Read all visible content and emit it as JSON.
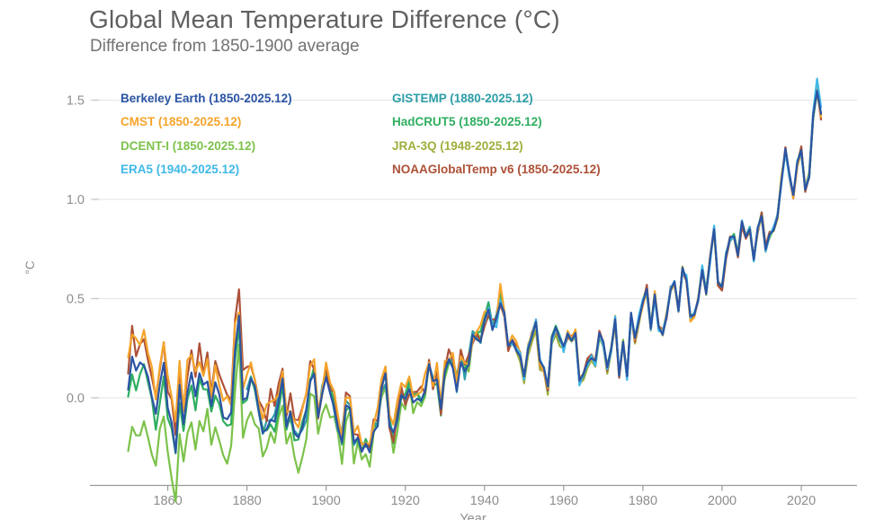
{
  "title": "Global Mean Temperature Difference (°C)",
  "subtitle": "Difference from 1850-1900 average",
  "colors": {
    "title_text": "#5f5f5f",
    "subtitle_text": "#737373",
    "axis_text": "#8e8e8e",
    "gridline": "#e9e9e9",
    "axis_line": "#9a9a9a",
    "background": "#ffffff"
  },
  "chart_data": {
    "type": "line",
    "title": "Global Mean Temperature Difference (°C)",
    "subtitle": "Difference from 1850-1900 average",
    "xlabel": "Year",
    "ylabel": "°C",
    "xlim": [
      1843,
      2034
    ],
    "ylim": [
      -0.45,
      1.65
    ],
    "grid": "horizontal",
    "legend_position": "top-left-two-columns",
    "x_start_year": 1850,
    "base_anomaly_by_year": [
      0.05,
      0.2,
      0.12,
      0.15,
      0.18,
      0.1,
      0.02,
      -0.1,
      0.05,
      0.15,
      -0.05,
      -0.15,
      -0.25,
      0.05,
      -0.15,
      0.05,
      0.1,
      0.0,
      0.12,
      0.05,
      0.08,
      -0.05,
      0.05,
      0.02,
      -0.08,
      -0.12,
      -0.1,
      0.25,
      0.4,
      0.0,
      0.02,
      0.1,
      0.05,
      -0.05,
      -0.15,
      -0.15,
      -0.08,
      -0.12,
      -0.02,
      0.1,
      -0.15,
      -0.08,
      -0.18,
      -0.2,
      -0.15,
      -0.08,
      0.1,
      0.12,
      -0.1,
      0.02,
      0.12,
      0.05,
      -0.05,
      -0.15,
      -0.2,
      -0.05,
      -0.02,
      -0.2,
      -0.18,
      -0.25,
      -0.22,
      -0.25,
      -0.15,
      -0.12,
      0.05,
      0.1,
      -0.12,
      -0.2,
      -0.08,
      0.02,
      0.0,
      0.05,
      -0.02,
      0.02,
      0.0,
      0.05,
      0.15,
      0.08,
      0.1,
      -0.05,
      0.15,
      0.2,
      0.18,
      0.05,
      0.2,
      0.12,
      0.18,
      0.3,
      0.32,
      0.3,
      0.4,
      0.45,
      0.35,
      0.38,
      0.5,
      0.42,
      0.25,
      0.28,
      0.25,
      0.22,
      0.1,
      0.25,
      0.32,
      0.38,
      0.18,
      0.15,
      0.05,
      0.3,
      0.35,
      0.3,
      0.25,
      0.32,
      0.3,
      0.33,
      0.08,
      0.12,
      0.18,
      0.2,
      0.18,
      0.32,
      0.28,
      0.15,
      0.25,
      0.4,
      0.12,
      0.28,
      0.1,
      0.42,
      0.3,
      0.4,
      0.48,
      0.55,
      0.35,
      0.52,
      0.35,
      0.33,
      0.42,
      0.55,
      0.58,
      0.45,
      0.65,
      0.6,
      0.4,
      0.42,
      0.5,
      0.65,
      0.53,
      0.7,
      0.85,
      0.58,
      0.55,
      0.72,
      0.8,
      0.82,
      0.72,
      0.88,
      0.82,
      0.85,
      0.7,
      0.85,
      0.92,
      0.75,
      0.82,
      0.85,
      0.92,
      1.1,
      1.25,
      1.12,
      1.02,
      1.18,
      1.25,
      1.05,
      1.12,
      1.42,
      1.55,
      1.42
    ],
    "series": [
      {
        "id": "berkeley",
        "label": "Berkeley Earth (1850-2025.12)",
        "color": "#2b54a4",
        "start": 1850,
        "seed": 1,
        "jitter_early": 0.03,
        "jitter_late": 0.012,
        "deltas": []
      },
      {
        "id": "cmst",
        "label": "CMST (1850-2025.12)",
        "color": "#f5a42c",
        "start": 1850,
        "seed": 2,
        "jitter_early": 0.05,
        "jitter_late": 0.02,
        "deltas": [
          [
            1850,
            0.16
          ],
          [
            1878,
            0.08
          ],
          [
            1900,
            0.05
          ],
          [
            1920,
            0.02
          ],
          [
            1938,
            0.04
          ],
          [
            1945,
            0.03
          ],
          [
            1955,
            0.0
          ],
          [
            2025,
            0.0
          ]
        ]
      },
      {
        "id": "dcent",
        "label": "DCENT-I (1850-2025.12)",
        "color": "#7cc24b",
        "start": 1850,
        "seed": 3,
        "jitter_early": 0.06,
        "jitter_late": 0.015,
        "deltas": [
          [
            1850,
            -0.3
          ],
          [
            1862,
            -0.22
          ],
          [
            1880,
            -0.15
          ],
          [
            1900,
            -0.1
          ],
          [
            1915,
            -0.04
          ],
          [
            1930,
            0.0
          ]
        ]
      },
      {
        "id": "era5",
        "label": "ERA5 (1940-2025.12)",
        "color": "#3fb8e8",
        "start": 1940,
        "seed": 4,
        "jitter_early": 0.025,
        "jitter_late": 0.02,
        "deltas": [
          [
            2022,
            0.0
          ],
          [
            2023,
            0.03
          ],
          [
            2024,
            0.05
          ],
          [
            2025,
            0.04
          ]
        ]
      },
      {
        "id": "gistemp",
        "label": "GISTEMP (1880-2025.12)",
        "color": "#2d9ea8",
        "start": 1880,
        "seed": 5,
        "jitter_early": 0.04,
        "jitter_late": 0.015,
        "deltas": []
      },
      {
        "id": "hadcrut5",
        "label": "HadCRUT5 (1850-2025.12)",
        "color": "#2fae60",
        "start": 1850,
        "seed": 6,
        "jitter_early": 0.04,
        "jitter_late": 0.015,
        "deltas": [
          [
            1850,
            -0.05
          ],
          [
            1880,
            -0.02
          ],
          [
            1900,
            0.0
          ]
        ]
      },
      {
        "id": "jra3q",
        "label": "JRA-3Q (1948-2025.12)",
        "color": "#a0ae3b",
        "start": 1948,
        "seed": 7,
        "jitter_early": 0.03,
        "jitter_late": 0.02,
        "deltas": [
          [
            1948,
            -0.02
          ],
          [
            1970,
            -0.02
          ],
          [
            1990,
            0.0
          ]
        ]
      },
      {
        "id": "noaa",
        "label": "NOAAGlobalTemp v6 (1850-2025.12)",
        "color": "#ad5138",
        "start": 1850,
        "seed": 8,
        "jitter_early": 0.05,
        "jitter_late": 0.02,
        "deltas": [
          [
            1850,
            0.12
          ],
          [
            1877,
            0.1
          ],
          [
            1900,
            0.04
          ],
          [
            1920,
            0.01
          ],
          [
            1940,
            0.0
          ]
        ]
      }
    ],
    "legend_order": [
      "berkeley",
      "gistemp",
      "cmst",
      "hadcrut5",
      "dcent",
      "jra3q",
      "era5",
      "noaa"
    ],
    "draw_order": [
      "dcent",
      "jra3q",
      "gistemp",
      "hadcrut5",
      "noaa",
      "cmst",
      "era5",
      "berkeley"
    ]
  },
  "axis": {
    "x_label": "Year",
    "y_label": "°C",
    "x_ticks": [
      1860,
      1880,
      1900,
      1920,
      1940,
      1960,
      1980,
      2000,
      2020
    ],
    "y_ticks": [
      {
        "label": "0.0",
        "value": 0.0
      },
      {
        "label": "0.5",
        "value": 0.5
      },
      {
        "label": "1.0",
        "value": 1.0
      },
      {
        "label": "1.5",
        "value": 1.5
      }
    ]
  }
}
